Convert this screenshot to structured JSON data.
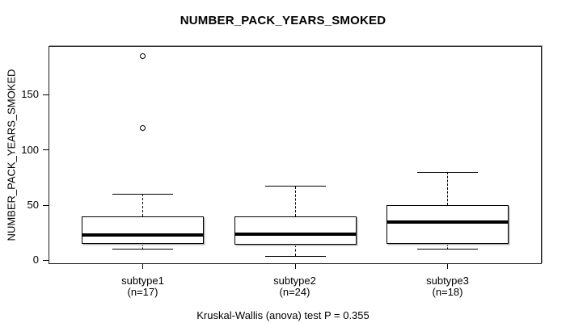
{
  "chart_data": {
    "type": "boxplot",
    "title": "NUMBER_PACK_YEARS_SMOKED",
    "ylabel": "NUMBER_PACK_YEARS_SMOKED",
    "xlabel": "",
    "caption": "Kruskal-Wallis (anova) test P = 0.355",
    "stat_test": {
      "name": "Kruskal-Wallis (anova) test",
      "p_value": 0.355
    },
    "ylim": [
      -3.3,
      194
    ],
    "yticks": [
      0,
      50,
      100,
      150
    ],
    "grid": false,
    "legend": "none",
    "groups": [
      {
        "label": "subtype1",
        "sublabel": "(n=17)",
        "n": 17,
        "min": 10,
        "q1": 15,
        "median": 23,
        "q3": 40,
        "max": 60,
        "outliers": [
          120,
          185
        ]
      },
      {
        "label": "subtype2",
        "sublabel": "(n=24)",
        "n": 24,
        "min": 4,
        "q1": 14,
        "median": 24,
        "q3": 40,
        "max": 67,
        "outliers": []
      },
      {
        "label": "subtype3",
        "sublabel": "(n=18)",
        "n": 18,
        "min": 10,
        "q1": 15,
        "median": 35,
        "q3": 50,
        "max": 80,
        "outliers": []
      }
    ]
  },
  "colors": {
    "foreground": "#000000",
    "background": "#ffffff",
    "box_fill": "#ffffff",
    "frame_shadow": "#9e9e9e",
    "box_shadow": "#b3b3b3"
  }
}
